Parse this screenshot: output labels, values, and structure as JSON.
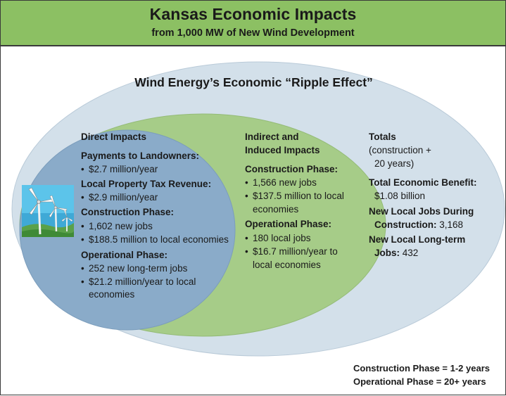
{
  "header": {
    "title": "Kansas Economic Impacts",
    "subtitle": "from 1,000 MW of New Wind Development"
  },
  "ripple_title": "Wind Energy’s Economic “Ripple Effect”",
  "direct": {
    "heading": "Direct Impacts",
    "landowners_label": "Payments to Landowners:",
    "landowners_value": "$2.7 million/year",
    "tax_label": "Local Property Tax Revenue:",
    "tax_value": "$2.9 million/year",
    "construction_label": "Construction Phase:",
    "construction_jobs": "1,602 new jobs",
    "construction_money": "$188.5 million to local economies",
    "operational_label": "Operational Phase:",
    "operational_jobs": "252 new long-term jobs",
    "operational_money_1": "$21.2 million/year to local",
    "operational_money_2": "economies"
  },
  "indirect": {
    "heading_1": "Indirect and",
    "heading_2": "Induced Impacts",
    "construction_label": "Construction Phase:",
    "construction_jobs": "1,566 new jobs",
    "construction_money_1": "$137.5 million to local",
    "construction_money_2": "economies",
    "operational_label": "Operational Phase:",
    "operational_jobs": "180 local jobs",
    "operational_money_1": "$16.7 million/year to",
    "operational_money_2": "local economies"
  },
  "totals": {
    "heading": "Totals",
    "note_1": "(construction +",
    "note_2": "20 years)",
    "benefit_label": "Total Economic Benefit:",
    "benefit_value": "$1.08 billion",
    "jobs_label_1": "New Local Jobs During",
    "jobs_label_2": "Construction:",
    "jobs_value": "3,168",
    "longterm_label_1": "New Local Long-term",
    "longterm_label_2": "Jobs:",
    "longterm_value": "432"
  },
  "footer": {
    "construction": "Construction Phase = 1-2 years",
    "operational": "Operational Phase = 20+ years"
  },
  "colors": {
    "header_bg": "#8cc063",
    "outer_ellipse": "#d3e0ea",
    "middle_ellipse": "#a6cc88",
    "inner_ellipse": "#8aabc9"
  },
  "icons": {
    "illustration": "wind-turbine-icon"
  }
}
